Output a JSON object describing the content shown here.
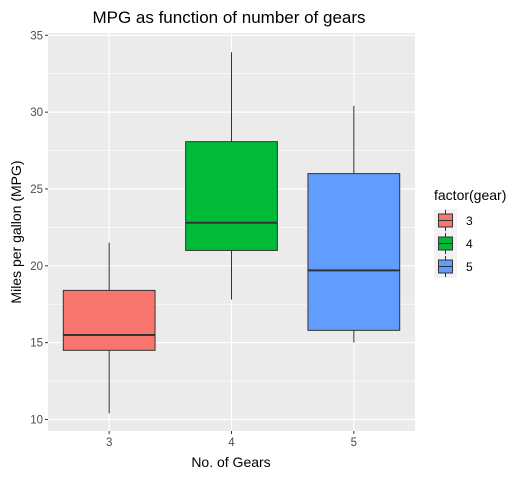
{
  "chart_data": {
    "type": "boxplot",
    "title": "MPG as function of number of gears",
    "xlabel": "No. of Gears",
    "ylabel": "Miles per gallon (MPG)",
    "categories": [
      "3",
      "4",
      "5"
    ],
    "ylim": [
      9.25,
      35.15
    ],
    "yticks": [
      10,
      15,
      20,
      25,
      30,
      35
    ],
    "grid": true,
    "legend": {
      "title": "factor(gear)",
      "position": "right",
      "entries": [
        "3",
        "4",
        "5"
      ]
    },
    "series": [
      {
        "category": "3",
        "min": 10.4,
        "q1": 14.5,
        "median": 15.5,
        "q3": 18.4,
        "max": 21.5,
        "color": "#F8766D"
      },
      {
        "category": "4",
        "min": 17.8,
        "q1": 21.0,
        "median": 22.8,
        "q3": 28.08,
        "max": 33.9,
        "color": "#00BA38"
      },
      {
        "category": "5",
        "min": 15.0,
        "q1": 15.8,
        "median": 19.7,
        "q3": 26.0,
        "max": 30.4,
        "color": "#619CFF"
      }
    ]
  }
}
